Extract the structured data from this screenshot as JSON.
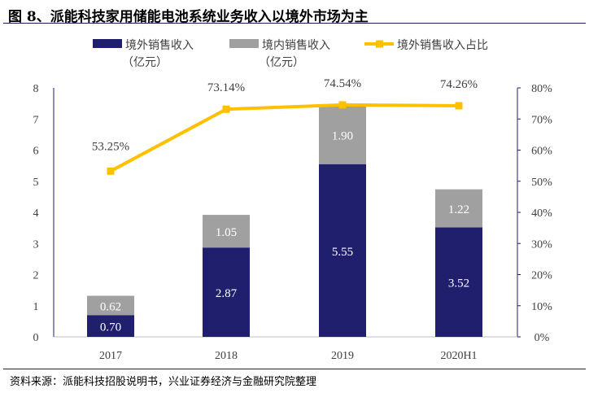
{
  "title": "图 8、派能科技家用储能电池系统业务收入以境外市场为主",
  "source": "资料来源：派能科技招股说明书，兴业证券经济与金融研究院整理",
  "chart_data": {
    "type": "bar+line",
    "categories": [
      "2017",
      "2018",
      "2019",
      "2020H1"
    ],
    "series": [
      {
        "name": "境外销售收入（亿元）",
        "type": "stacked-bar",
        "axis": "left",
        "color": "#1f1f6e",
        "values": [
          0.7,
          2.87,
          5.55,
          3.52
        ],
        "labels": [
          "0.70",
          "2.87",
          "5.55",
          "3.52"
        ]
      },
      {
        "name": "境内销售收入（亿元）",
        "type": "stacked-bar",
        "axis": "left",
        "color": "#a0a0a0",
        "values": [
          0.62,
          1.05,
          1.9,
          1.22
        ],
        "labels": [
          "0.62",
          "1.05",
          "1.90",
          "1.22"
        ]
      },
      {
        "name": "境外销售收入占比",
        "type": "line",
        "axis": "right",
        "color": "#ffc000",
        "values": [
          53.25,
          73.14,
          74.54,
          74.26
        ],
        "labels": [
          "53.25%",
          "73.14%",
          "74.54%",
          "74.26%"
        ]
      }
    ],
    "legend": {
      "items": [
        {
          "line1": "境外销售收入",
          "line2": "（亿元）"
        },
        {
          "line1": "境内销售收入",
          "line2": "（亿元）"
        },
        {
          "line1": "境外销售收入占比",
          "line2": ""
        }
      ],
      "position": "top"
    },
    "ylim": [
      0,
      8
    ],
    "yticks": [
      "0",
      "1",
      "2",
      "3",
      "4",
      "5",
      "6",
      "7",
      "8"
    ],
    "y2lim": [
      0,
      80
    ],
    "y2ticks": [
      "0%",
      "10%",
      "20%",
      "30%",
      "40%",
      "50%",
      "60%",
      "70%",
      "80%"
    ],
    "grid": false
  }
}
